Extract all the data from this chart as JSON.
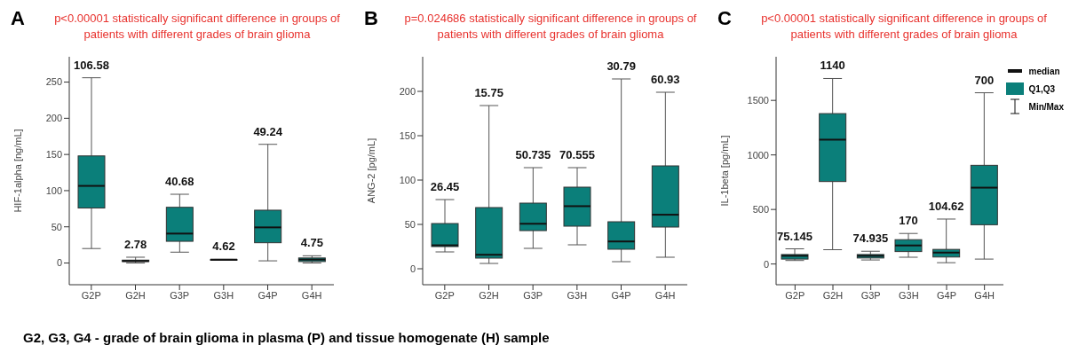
{
  "chart_data": [
    {
      "type": "box",
      "title": "p<0.00001 statistically significant difference in groups of patients with different grades of brain glioma",
      "ylabel": "HIF-1alpha [ng/mL]",
      "categories": [
        "G2P",
        "G2H",
        "G3P",
        "G3H",
        "G4P",
        "G4H"
      ],
      "color": "#0b7f7a",
      "ylim": [
        -30,
        285
      ],
      "yticks": [
        0,
        50,
        100,
        150,
        200,
        250
      ],
      "boxes": [
        {
          "low": 20,
          "q1": 76,
          "median": 106.58,
          "q3": 148,
          "high": 256
        },
        {
          "low": 0,
          "q1": 2,
          "median": 2.78,
          "q3": 4,
          "high": 8
        },
        {
          "low": 15,
          "q1": 30,
          "median": 40.68,
          "q3": 77,
          "high": 95
        },
        {
          "low": 4,
          "q1": 4.3,
          "median": 4.62,
          "q3": 5,
          "high": 5
        },
        {
          "low": 3,
          "q1": 28,
          "median": 49.24,
          "q3": 73,
          "high": 164
        },
        {
          "low": 0,
          "q1": 2,
          "median": 4.75,
          "q3": 7,
          "high": 10
        }
      ],
      "annotations": [
        "A",
        "G2, G3, G4 - grade of brain glioma in plasma (P) and tissue homogenate (H) sample",
        "106.58",
        "2.78",
        "40.68",
        "4.62",
        "49.24",
        "4.75"
      ]
    },
    {
      "type": "box",
      "title": "p=0.024686 statistically significant difference in groups of patients with different grades of brain glioma",
      "ylabel": "ANG-2 [pg/mL]",
      "categories": [
        "G2P",
        "G2H",
        "G3P",
        "G3H",
        "G4P",
        "G4H"
      ],
      "color": "#0b7f7a",
      "ylim": [
        -18,
        239
      ],
      "yticks": [
        0,
        50,
        100,
        150,
        200
      ],
      "boxes": [
        {
          "low": 19,
          "q1": 25,
          "median": 26.45,
          "q3": 51,
          "high": 78
        },
        {
          "low": 6,
          "q1": 12,
          "median": 15.75,
          "q3": 69,
          "high": 184
        },
        {
          "low": 23,
          "q1": 43,
          "median": 50.735,
          "q3": 74,
          "high": 114
        },
        {
          "low": 27,
          "q1": 48,
          "median": 70.555,
          "q3": 92,
          "high": 114
        },
        {
          "low": 8,
          "q1": 22,
          "median": 30.79,
          "q3": 53,
          "high": 214
        },
        {
          "low": 13,
          "q1": 47,
          "median": 60.93,
          "q3": 116,
          "high": 199
        }
      ],
      "annotations": [
        "B",
        "26.45",
        "15.75",
        "50.735",
        "70.555",
        "30.79",
        "60.93"
      ]
    },
    {
      "type": "box",
      "title": "p<0.00001 statistically significant difference in groups of patients with different grades of brain glioma",
      "ylabel": "IL-1beta [pg/mL]",
      "categories": [
        "G2P",
        "G2H",
        "G3P",
        "G3H",
        "G4P",
        "G4H"
      ],
      "color": "#0b7f7a",
      "ylim": [
        -190,
        1900
      ],
      "yticks": [
        0,
        500,
        1000,
        1500
      ],
      "boxes": [
        {
          "low": 32,
          "q1": 45,
          "median": 75.145,
          "q3": 87,
          "high": 139
        },
        {
          "low": 131,
          "q1": 756,
          "median": 1140,
          "q3": 1379,
          "high": 1701
        },
        {
          "low": 37,
          "q1": 55,
          "median": 74.935,
          "q3": 87,
          "high": 117
        },
        {
          "low": 62,
          "q1": 114,
          "median": 170,
          "q3": 223,
          "high": 280
        },
        {
          "low": 12,
          "q1": 64,
          "median": 104.62,
          "q3": 134,
          "high": 412
        },
        {
          "low": 45,
          "q1": 360,
          "median": 700,
          "q3": 905,
          "high": 1570
        }
      ],
      "annotations": [
        "C",
        "median",
        "Q1,Q3",
        "Min/Max",
        "75.145",
        "1140",
        "74.935",
        "170",
        "104.62",
        "700"
      ]
    }
  ]
}
